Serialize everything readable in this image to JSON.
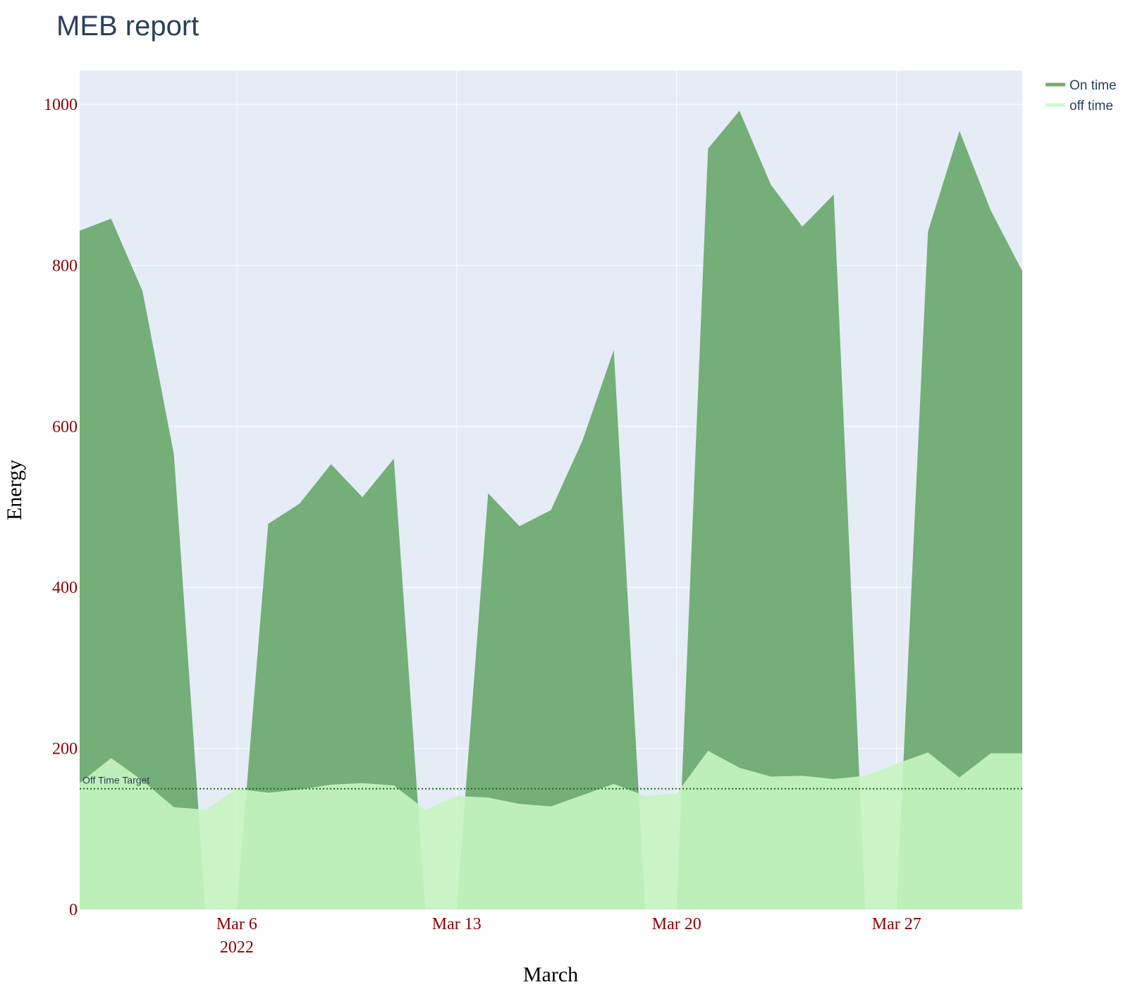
{
  "chart_data": {
    "type": "area",
    "title": "MEB report",
    "xlabel": "March",
    "ylabel": "Energy",
    "x": [
      "2022-03-01",
      "2022-03-02",
      "2022-03-03",
      "2022-03-04",
      "2022-03-05",
      "2022-03-06",
      "2022-03-07",
      "2022-03-08",
      "2022-03-09",
      "2022-03-10",
      "2022-03-11",
      "2022-03-12",
      "2022-03-13",
      "2022-03-14",
      "2022-03-15",
      "2022-03-16",
      "2022-03-17",
      "2022-03-18",
      "2022-03-19",
      "2022-03-20",
      "2022-03-21",
      "2022-03-22",
      "2022-03-23",
      "2022-03-24",
      "2022-03-25",
      "2022-03-26",
      "2022-03-27",
      "2022-03-28",
      "2022-03-29",
      "2022-03-30",
      "2022-03-31"
    ],
    "series": [
      {
        "name": "On time",
        "color": "#4e9a4e",
        "values": [
          843,
          858,
          768,
          565,
          0,
          0,
          479,
          504,
          553,
          512,
          560,
          0,
          0,
          517,
          476,
          496,
          582,
          695,
          0,
          0,
          945,
          992,
          900,
          848,
          888,
          0,
          0,
          842,
          967,
          868,
          793
        ]
      },
      {
        "name": "off time",
        "color": "#c6f5c0",
        "values": [
          157,
          188,
          160,
          127,
          124,
          150,
          145,
          149,
          155,
          157,
          154,
          124,
          141,
          139,
          131,
          128,
          142,
          156,
          141,
          144,
          197,
          176,
          165,
          166,
          162,
          166,
          181,
          195,
          164,
          194,
          194
        ]
      }
    ],
    "x_ticks": [
      {
        "date": "2022-03-06",
        "label": "Mar 6",
        "sublabel": "2022"
      },
      {
        "date": "2022-03-13",
        "label": "Mar 13",
        "sublabel": ""
      },
      {
        "date": "2022-03-20",
        "label": "Mar 20",
        "sublabel": ""
      },
      {
        "date": "2022-03-27",
        "label": "Mar 27",
        "sublabel": ""
      }
    ],
    "y_ticks": [
      0,
      200,
      400,
      600,
      800,
      1000
    ],
    "xlim": [
      "2022-03-01",
      "2022-03-31"
    ],
    "ylim": [
      0,
      1042
    ],
    "grid": true,
    "legend_position": "top-right",
    "target": {
      "value": 150,
      "label": "Off Time Target",
      "color": "#1a6b1a"
    }
  }
}
